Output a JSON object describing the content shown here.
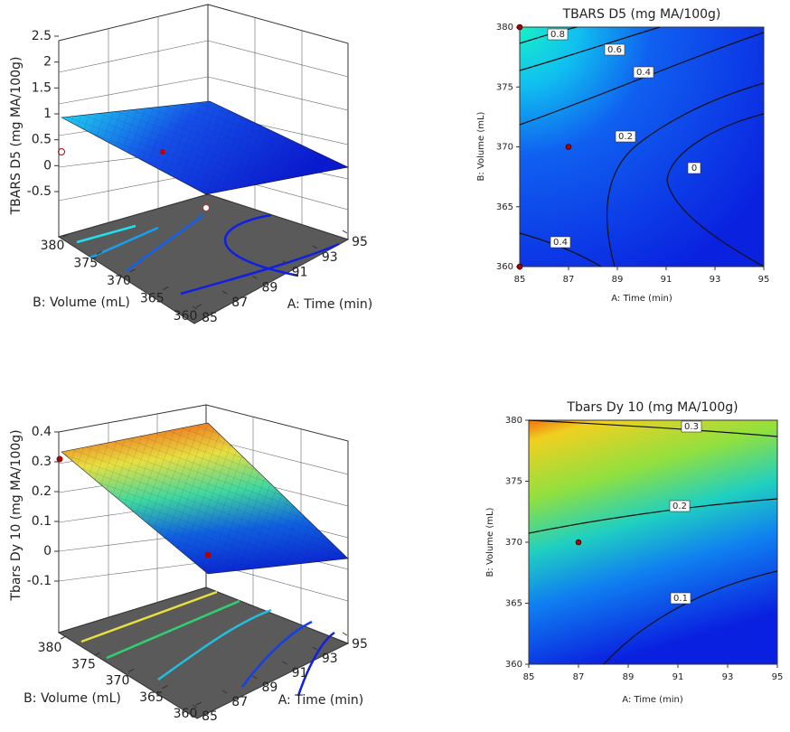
{
  "chart_data": [
    {
      "type": "surface",
      "zlabel": "TBARS D5 (mg MA/100g)",
      "xlabel": "A: Time (min)",
      "ylabel": "B: Volume (mL)",
      "xlim": [
        85,
        95
      ],
      "xticks": [
        85,
        87,
        89,
        91,
        93,
        95
      ],
      "ylim": [
        360,
        380
      ],
      "yticks": [
        360,
        365,
        370,
        375,
        380
      ],
      "zlim": [
        -0.5,
        2.5
      ],
      "zticks": [
        -0.5,
        0,
        0.5,
        1,
        1.5,
        2,
        2.5
      ]
    },
    {
      "type": "contour",
      "title": "TBARS D5 (mg MA/100g)",
      "xlabel": "A: Time (min)",
      "ylabel": "B: Volume (mL)",
      "xlim": [
        85,
        95
      ],
      "xticks": [
        85,
        87,
        89,
        91,
        93,
        95
      ],
      "ylim": [
        360,
        380
      ],
      "yticks": [
        360,
        365,
        370,
        375,
        380
      ],
      "levels": [
        0.8,
        0.6,
        0.4,
        0.2,
        0,
        0.4
      ],
      "points": {
        "x": [
          87,
          85,
          85
        ],
        "y": [
          370,
          380,
          360
        ]
      }
    },
    {
      "type": "surface",
      "zlabel": "Tbars Dy 10 (mg MA/100g)",
      "xlabel": "A: Time (min)",
      "ylabel": "B: Volume (mL)",
      "xlim": [
        85,
        95
      ],
      "xticks": [
        85,
        87,
        89,
        91,
        93,
        95
      ],
      "ylim": [
        360,
        380
      ],
      "yticks": [
        360,
        365,
        370,
        375,
        380
      ],
      "zlim": [
        -0.1,
        0.4
      ],
      "zticks": [
        -0.1,
        0,
        0.1,
        0.2,
        0.3,
        0.4
      ]
    },
    {
      "type": "contour",
      "title": "Tbars Dy 10 (mg MA/100g)",
      "xlabel": "A: Time (min)",
      "ylabel": "B: Volume (mL)",
      "xlim": [
        85,
        95
      ],
      "xticks": [
        85,
        87,
        89,
        91,
        93,
        95
      ],
      "ylim": [
        360,
        380
      ],
      "yticks": [
        360,
        365,
        370,
        375,
        380
      ],
      "levels": [
        0.3,
        0.2,
        0.1
      ],
      "points": {
        "x": [
          87
        ],
        "y": [
          370
        ]
      }
    }
  ]
}
